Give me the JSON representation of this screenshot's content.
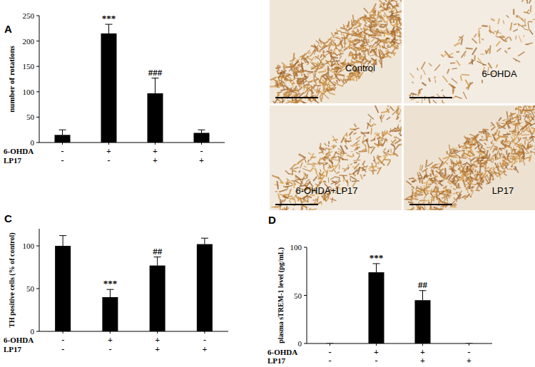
{
  "chart_data": [
    {
      "type": "bar",
      "title": "A",
      "y_label": "number of rotations",
      "categories": [
        null,
        null,
        null,
        null
      ],
      "values": [
        15,
        215,
        97,
        19
      ],
      "errors": [
        10,
        18,
        30,
        6
      ],
      "significance": [
        null,
        "***",
        "###",
        null
      ],
      "treatments": [
        {
          "label": "6-OHDA",
          "marks": [
            "-",
            "+",
            "+",
            "-"
          ]
        },
        {
          "label": "LP17",
          "marks": [
            "-",
            "-",
            "+",
            "+"
          ]
        }
      ],
      "color": "#000000",
      "ylim": [
        0,
        250
      ],
      "yticks": [
        0,
        50,
        100,
        150,
        200,
        250
      ]
    },
    {
      "type": "bar",
      "title": "C",
      "y_label": "TH positive cells (% of control)",
      "categories": [
        null,
        null,
        null,
        null
      ],
      "values": [
        100,
        40,
        77,
        102
      ],
      "errors": [
        12,
        9,
        10,
        7
      ],
      "significance": [
        null,
        "***",
        "##",
        null
      ],
      "treatments": [
        {
          "label": "6-OHDA",
          "marks": [
            "-",
            "+",
            "+",
            "-"
          ]
        },
        {
          "label": "LP17",
          "marks": [
            "-",
            "-",
            "+",
            "+"
          ]
        }
      ],
      "color": "#000000",
      "ylim": [
        0,
        120
      ],
      "yticks": [
        0,
        50,
        100
      ]
    },
    {
      "type": "bar",
      "title": "D",
      "y_label": "plasma sTREM-1 level (pg/mL)",
      "categories": [
        null,
        null,
        null,
        null
      ],
      "values": [
        0,
        74,
        45,
        0
      ],
      "errors": [
        0,
        9,
        10,
        0
      ],
      "significance": [
        null,
        "***",
        "##",
        null
      ],
      "treatments": [
        {
          "label": "6-OHDA",
          "marks": [
            "-",
            "+",
            "+",
            "-"
          ]
        },
        {
          "label": "LP17",
          "marks": [
            "-",
            "-",
            "+",
            "+"
          ]
        }
      ],
      "color": "#000000",
      "ylim": [
        0,
        100
      ],
      "yticks": [
        0,
        50,
        100
      ]
    }
  ],
  "image_panel": {
    "title": "B",
    "labels": [
      "Control",
      "6-OHDA",
      "6-OHDA+LP17",
      "LP17"
    ]
  }
}
